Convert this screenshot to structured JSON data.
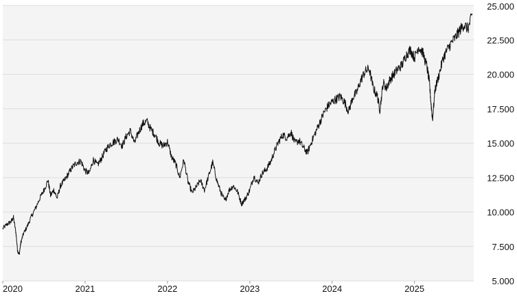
{
  "chart_data": {
    "type": "line",
    "title": "",
    "xlabel": "",
    "ylabel": "",
    "grid": true,
    "legend": "none",
    "y_axis_position": "right",
    "xlim": [
      2020.0,
      2025.72
    ],
    "ylim": [
      5000,
      25000
    ],
    "y_ticks": [
      5000,
      7500,
      10000,
      12500,
      15000,
      17500,
      20000,
      22500,
      25000
    ],
    "y_tick_labels": [
      "5.000",
      "7.500",
      "10.000",
      "12.500",
      "15.000",
      "17.500",
      "20.000",
      "22.500",
      "25.000"
    ],
    "x_ticks": [
      2020,
      2021,
      2022,
      2023,
      2024,
      2025
    ],
    "x_tick_labels": [
      "2020",
      "2021",
      "2022",
      "2023",
      "2024",
      "2025"
    ],
    "colors": {
      "line": "#111111",
      "plot_background": "#f4f4f4",
      "grid": "#dcdcdc"
    },
    "series": [
      {
        "x": [
          2020.0,
          2020.05,
          2020.1,
          2020.13,
          2020.16,
          2020.18,
          2020.2,
          2020.22,
          2020.25,
          2020.3,
          2020.35,
          2020.4,
          2020.45,
          2020.5,
          2020.55,
          2020.58,
          2020.62,
          2020.66,
          2020.7,
          2020.75,
          2020.8,
          2020.85,
          2020.9,
          2020.95,
          2021.0,
          2021.05,
          2021.1,
          2021.15,
          2021.2,
          2021.25,
          2021.3,
          2021.35,
          2021.4,
          2021.45,
          2021.5,
          2021.55,
          2021.6,
          2021.65,
          2021.7,
          2021.75,
          2021.8,
          2021.85,
          2021.9,
          2021.95,
          2022.0,
          2022.05,
          2022.1,
          2022.15,
          2022.2,
          2022.25,
          2022.3,
          2022.35,
          2022.4,
          2022.45,
          2022.5,
          2022.55,
          2022.6,
          2022.65,
          2022.7,
          2022.75,
          2022.8,
          2022.85,
          2022.9,
          2022.95,
          2023.0,
          2023.05,
          2023.1,
          2023.15,
          2023.2,
          2023.25,
          2023.3,
          2023.35,
          2023.4,
          2023.45,
          2023.5,
          2023.55,
          2023.6,
          2023.65,
          2023.7,
          2023.75,
          2023.8,
          2023.85,
          2023.9,
          2023.95,
          2024.0,
          2024.05,
          2024.1,
          2024.15,
          2024.2,
          2024.25,
          2024.3,
          2024.35,
          2024.4,
          2024.45,
          2024.5,
          2024.55,
          2024.58,
          2024.62,
          2024.66,
          2024.7,
          2024.75,
          2024.8,
          2024.85,
          2024.9,
          2024.95,
          2025.0,
          2025.05,
          2025.1,
          2025.15,
          2025.18,
          2025.2,
          2025.22,
          2025.25,
          2025.3,
          2025.35,
          2025.4,
          2025.45,
          2025.5,
          2025.55,
          2025.6,
          2025.65,
          2025.7
        ],
        "y": [
          8800,
          9100,
          9300,
          9600,
          8500,
          7200,
          6900,
          7800,
          8400,
          9000,
          9700,
          10300,
          11000,
          11600,
          12300,
          11200,
          11600,
          11000,
          11900,
          12300,
          12800,
          13300,
          13600,
          13700,
          13000,
          12800,
          13800,
          13400,
          13900,
          14500,
          14900,
          15100,
          15300,
          14800,
          15500,
          15900,
          15000,
          15800,
          16400,
          16600,
          16000,
          15600,
          15000,
          14800,
          15100,
          14000,
          13500,
          12500,
          13800,
          12200,
          11400,
          11800,
          12300,
          11600,
          12600,
          13600,
          12300,
          11400,
          10800,
          11600,
          11900,
          11500,
          10600,
          11000,
          11600,
          12600,
          12100,
          12800,
          13100,
          13600,
          14400,
          15100,
          15600,
          15400,
          15800,
          15000,
          15200,
          14700,
          14300,
          15100,
          15800,
          16500,
          17200,
          17700,
          18000,
          18200,
          18400,
          18000,
          17300,
          18300,
          18700,
          19600,
          20200,
          20400,
          19000,
          18400,
          17400,
          19400,
          19000,
          19600,
          20000,
          20400,
          20700,
          21400,
          21800,
          21200,
          22000,
          21600,
          20600,
          19500,
          18000,
          16700,
          18900,
          20000,
          21200,
          21800,
          22300,
          22700,
          23200,
          23600,
          23300,
          24300
        ]
      }
    ]
  }
}
